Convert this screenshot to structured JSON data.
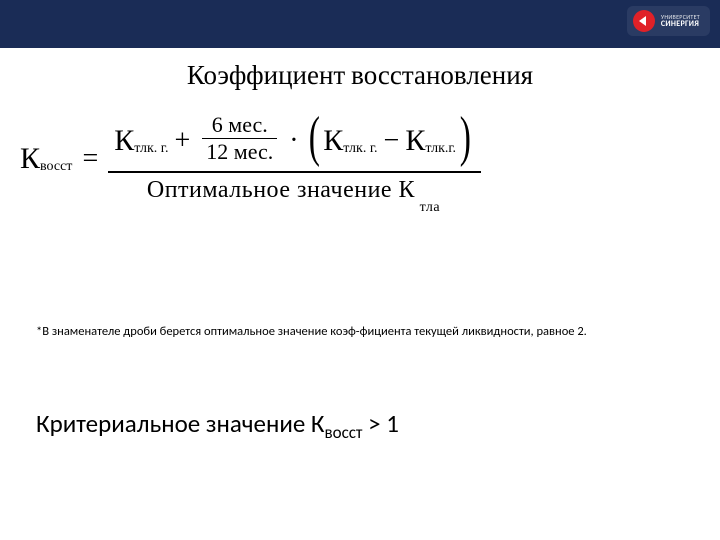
{
  "header": {
    "background_color": "#1a2c56",
    "logo": {
      "pill_color": "#2a3b63",
      "circle_color": "#e02128",
      "line1": "УНИВЕРСИТЕТ",
      "line2": "СИНЕРГИЯ"
    }
  },
  "title": "Коэффициент восстановления",
  "formula": {
    "lhs_K": "К",
    "lhs_sub": "восст",
    "equals": "=",
    "numerator": {
      "term1_K": "К",
      "term1_sub": "тлк. г.",
      "plus": "+",
      "frac_num": "6 мес.",
      "frac_den": "12 мес.",
      "dot": "·",
      "lparen": "(",
      "term2_K": "К",
      "term2_sub": "тлк. г.",
      "minus": "−",
      "term3_K": "К",
      "term3_sub": "тлк.г.",
      "rparen": ")"
    },
    "denominator": "Оптимальное значение К",
    "den_trail_sub": "тла"
  },
  "footnote": "*В знаменателе дроби берется оптимальное значение коэф-фициента текущей ликвидности, равное 2.",
  "criterion": {
    "prefix": "Критериальное значение К",
    "sub": "восст",
    "suffix": " > 1"
  },
  "styling": {
    "slide_width": 720,
    "slide_height": 540,
    "title_fontsize": 27,
    "title_font": "Cambria, Georgia, serif",
    "formula_font": "Times New Roman, serif",
    "formula_fontsize": 28,
    "footnote_fontsize": 12.5,
    "criterion_fontsize": 25,
    "text_color": "#000000",
    "background_color": "#ffffff"
  }
}
